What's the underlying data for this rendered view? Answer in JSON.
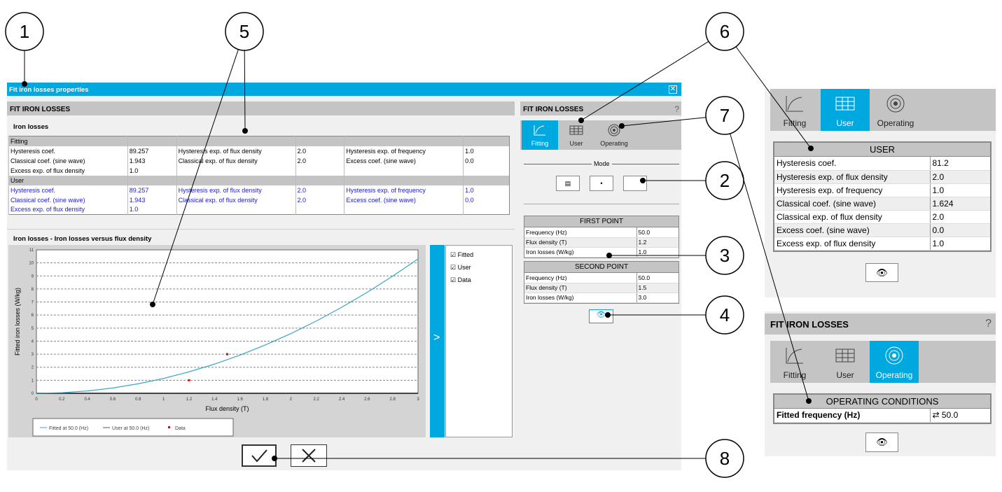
{
  "dialog": {
    "title": "Fit iron losses properties",
    "close_icon": "close-icon",
    "accent": "#00a8e0"
  },
  "left": {
    "header": "FIT IRON LOSSES",
    "section": "Iron losses",
    "fitting": {
      "label": "Fitting",
      "rows": [
        [
          "Hysteresis coef.",
          "89.257",
          "Hysteresis exp. of flux density",
          "2.0",
          "Hysteresis exp. of frequency",
          "1.0"
        ],
        [
          "Classical coef. (sine wave)",
          "1.943",
          "Classical exp. of flux density",
          "2.0",
          "Excess coef. (sine wave)",
          "0.0"
        ],
        [
          "Excess exp. of flux density",
          "1.0",
          "",
          "",
          "",
          ""
        ]
      ]
    },
    "user": {
      "label": "User",
      "rows": [
        [
          "Hysteresis coef.",
          "89.257",
          "Hysteresis exp. of flux density",
          "2.0",
          "Hysteresis exp. of frequency",
          "1.0"
        ],
        [
          "Classical coef. (sine wave)",
          "1.943",
          "Classical exp. of flux density",
          "2.0",
          "Excess coef. (sine wave)",
          "0.0"
        ],
        [
          "Excess exp. of flux density",
          "1.0",
          "",
          "",
          "",
          ""
        ]
      ]
    },
    "chart_title": "Iron losses - Iron losses versus flux density",
    "toggle_label": ">",
    "checks": [
      "Fitted",
      "User",
      "Data"
    ]
  },
  "chart_data": {
    "type": "line",
    "xlabel": "Flux density (T)",
    "ylabel": "Fitted iron losses (W/kg)",
    "xlim": [
      0,
      3
    ],
    "ylim": [
      0,
      11
    ],
    "xticks": [
      "0",
      "0.2",
      "0.4",
      "0.6",
      "0.8",
      "1",
      "1.2",
      "1.4",
      "1.6",
      "1.8",
      "2",
      "2.2",
      "2.4",
      "2.6",
      "2.8",
      "3"
    ],
    "yticks": [
      "0",
      "1",
      "2",
      "3",
      "4",
      "5",
      "6",
      "7",
      "8",
      "9",
      "10",
      "11"
    ],
    "grid": "horizontal dashed",
    "series": [
      {
        "name": "Fitted at 50.0 (Hz)",
        "color": "#3aa6c8",
        "x": [
          0,
          0.2,
          0.4,
          0.6,
          0.8,
          1,
          1.2,
          1.4,
          1.6,
          1.8,
          2,
          2.2,
          2.4,
          2.6,
          2.8,
          3
        ],
        "y": [
          0,
          0.05,
          0.18,
          0.41,
          0.73,
          1.14,
          1.65,
          2.24,
          2.93,
          3.71,
          4.58,
          5.54,
          6.6,
          7.74,
          8.98,
          10.3
        ]
      },
      {
        "name": "User at 50.0 (Hz)",
        "color": "#555555",
        "x": [],
        "y": []
      },
      {
        "name": "Data",
        "color": "#e00000",
        "type": "scatter",
        "x": [
          1.2,
          1.5
        ],
        "y": [
          1.0,
          3.0
        ]
      }
    ],
    "legend": "bottom"
  },
  "footer": {
    "ok_icon": "checkmark-icon",
    "cancel_icon": "x-icon"
  },
  "right": {
    "header": "FIT IRON LOSSES",
    "help": "?",
    "tabs": [
      "Fitting",
      "User",
      "Operating"
    ],
    "mode_label": "Mode",
    "first": {
      "title": "FIRST POINT",
      "rows": [
        [
          "Frequency (Hz)",
          "50.0"
        ],
        [
          "Flux density (T)",
          "1.2"
        ],
        [
          "Iron losses (W/kg)",
          "1.0"
        ]
      ]
    },
    "second": {
      "title": "SECOND POINT",
      "rows": [
        [
          "Frequency (Hz)",
          "50.0"
        ],
        [
          "Flux density (T)",
          "1.5"
        ],
        [
          "Iron losses (W/kg)",
          "3.0"
        ]
      ]
    }
  },
  "inset_user": {
    "tabs": [
      "Fitting",
      "User",
      "Operating"
    ],
    "title": "USER",
    "rows": [
      [
        "Hysteresis coef.",
        "81.2"
      ],
      [
        "Hysteresis exp. of flux density",
        "2.0"
      ],
      [
        "Hysteresis exp. of frequency",
        "1.0"
      ],
      [
        "Classical coef. (sine wave)",
        "1.624"
      ],
      [
        "Classical exp. of flux density",
        "2.0"
      ],
      [
        "Excess coef. (sine wave)",
        "0.0"
      ],
      [
        "Excess exp. of flux density",
        "1.0"
      ]
    ]
  },
  "inset_operating": {
    "header": "FIT IRON LOSSES",
    "help": "?",
    "tabs": [
      "Fitting",
      "User",
      "Operating"
    ],
    "title": "OPERATING CONDITIONS",
    "row": [
      "Fitted frequency (Hz)",
      "50.0"
    ]
  },
  "callouts": [
    "1",
    "2",
    "3",
    "4",
    "5",
    "6",
    "7",
    "8"
  ]
}
